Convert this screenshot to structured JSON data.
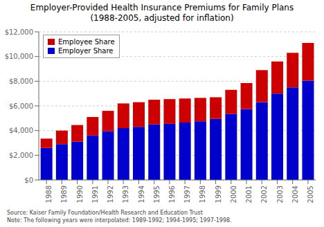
{
  "chart_data": {
    "type": "bar",
    "stacked": true,
    "title": "Employer-Provided Health Insurance Premiums for Family Plans\n(1988-2005, adjusted for inflation)",
    "categories": [
      "1988",
      "1989",
      "1990",
      "1991",
      "1992",
      "1993",
      "1994",
      "1995",
      "1996",
      "1997",
      "1998",
      "1999",
      "2000",
      "2001",
      "2002",
      "2003",
      "2004",
      "2005"
    ],
    "series": [
      {
        "name": "Employer Share",
        "color": "#0000cc",
        "values": [
          2600,
          2900,
          3100,
          3600,
          3950,
          4200,
          4300,
          4500,
          4550,
          4650,
          4750,
          4950,
          5350,
          5750,
          6300,
          7000,
          7500,
          8050
        ]
      },
      {
        "name": "Employee Share",
        "color": "#cc0000",
        "values": [
          750,
          1100,
          1350,
          1500,
          1650,
          2000,
          2000,
          2000,
          2000,
          1950,
          1900,
          1750,
          1950,
          2100,
          2600,
          2600,
          2800,
          3050
        ]
      }
    ],
    "ylim": [
      0,
      12000
    ],
    "yticks": [
      {
        "value": 0,
        "label": "$0"
      },
      {
        "value": 2000,
        "label": "$2,000"
      },
      {
        "value": 4000,
        "label": "$4,000"
      },
      {
        "value": 6000,
        "label": "$6,000"
      },
      {
        "value": 8000,
        "label": "$8,000"
      },
      {
        "value": 10000,
        "label": "$10,000"
      },
      {
        "value": 12000,
        "label": "$12,000"
      }
    ],
    "grid": true,
    "legend": "upper left",
    "annotations": [
      "Source: Kaiser Family Foundation/Health Research and Education Trust\nNote: The following years were interpolated: 1989-1992; 1994-1995; 1997-1998."
    ]
  }
}
